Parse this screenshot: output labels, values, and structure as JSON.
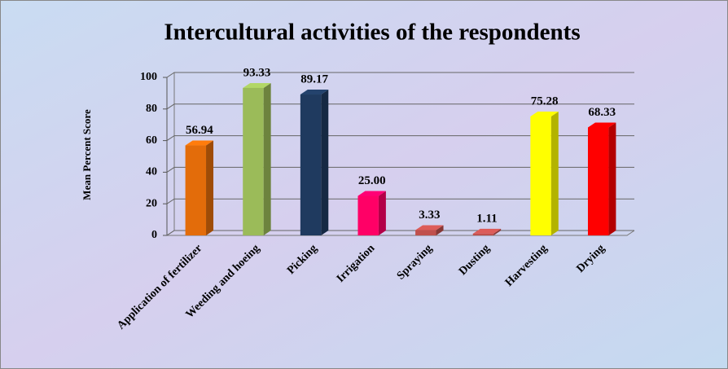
{
  "chart_data": {
    "type": "bar3d",
    "title": "Intercultural activities of the respondents",
    "y_label": "Mean Percent Score",
    "categories": [
      "Application of fertilizer",
      "Weeding and hoeing",
      "Picking",
      "Irrigation",
      "Spraying",
      "Dusting",
      "Harvesting",
      "Drying"
    ],
    "values": [
      56.94,
      93.33,
      89.17,
      25,
      3.33,
      1.11,
      75.28,
      68.33
    ],
    "value_labels": [
      "56.94",
      "93.33",
      "89.17",
      "25.00",
      "3.33",
      "1.11",
      "75.28",
      "68.33"
    ],
    "colors": [
      "#e36c0a",
      "#9bbb59",
      "#1f3a5f",
      "#ff0066",
      "#c0504d",
      "#c0504d",
      "#ffff00",
      "#ff0000"
    ],
    "ylim": [
      0,
      100
    ],
    "yticks": [
      0,
      20,
      40,
      60,
      80,
      100
    ],
    "grid": true
  }
}
